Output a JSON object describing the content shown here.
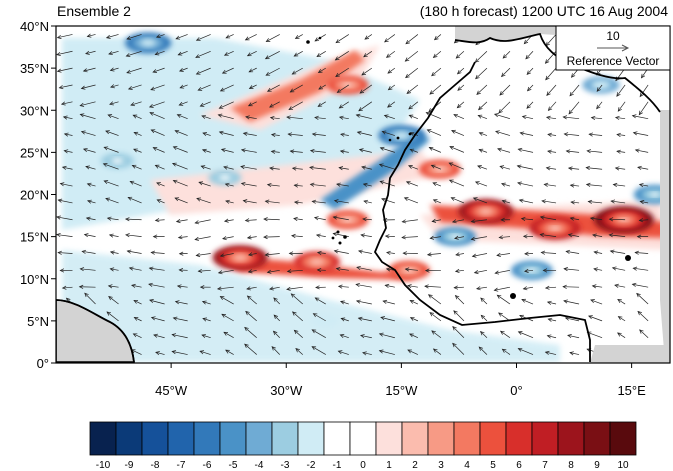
{
  "panel": {
    "left_title": "Ensemble 2",
    "right_title": "(180 h forecast) 1200 UTC 16 Aug 2004"
  },
  "reference_vector": {
    "magnitude_label": "10",
    "label": "Reference Vector"
  },
  "map": {
    "lon_range": [
      -60,
      20
    ],
    "lat_range": [
      0,
      40
    ],
    "lat_ticks": [
      "40°N",
      "35°N",
      "30°N",
      "25°N",
      "20°N",
      "15°N",
      "10°N",
      "5°N",
      "0°"
    ],
    "lon_ticks": [
      "45°W",
      "30°W",
      "15°W",
      "0°",
      "15°E"
    ],
    "land_mask_color": "#d3d3d3",
    "coastline_color": "#000000",
    "vector_color": "#222222"
  },
  "anomaly_features": [
    {
      "lon": -36,
      "lat": 12.5,
      "value": 8,
      "sign": "positive"
    },
    {
      "lon": -26,
      "lat": 12,
      "value": 6,
      "sign": "positive"
    },
    {
      "lon": -14,
      "lat": 11,
      "value": 5,
      "sign": "positive"
    },
    {
      "lon": -4,
      "lat": 18,
      "value": 8,
      "sign": "positive"
    },
    {
      "lon": 5,
      "lat": 16,
      "value": 7,
      "sign": "positive"
    },
    {
      "lon": 14,
      "lat": 17,
      "value": 9,
      "sign": "positive"
    },
    {
      "lon": -10,
      "lat": 23,
      "value": 5,
      "sign": "positive"
    },
    {
      "lon": -22,
      "lat": 33,
      "value": 5,
      "sign": "positive"
    },
    {
      "lon": -22,
      "lat": 17,
      "value": 5,
      "sign": "positive"
    },
    {
      "lon": -15,
      "lat": 27,
      "value": -6,
      "sign": "negative"
    },
    {
      "lon": -48,
      "lat": 38,
      "value": -6,
      "sign": "negative"
    },
    {
      "lon": -8,
      "lat": 15,
      "value": -5,
      "sign": "negative"
    },
    {
      "lon": 2,
      "lat": 11,
      "value": -5,
      "sign": "negative"
    },
    {
      "lon": -52,
      "lat": 24,
      "value": -3,
      "sign": "negative"
    },
    {
      "lon": -38,
      "lat": 22,
      "value": -3,
      "sign": "negative"
    },
    {
      "lon": -25,
      "lat": 5,
      "value": -2,
      "sign": "negative"
    },
    {
      "lon": 18,
      "lat": 20,
      "value": -5,
      "sign": "negative"
    },
    {
      "lon": 11,
      "lat": 33,
      "value": -4,
      "sign": "negative"
    }
  ],
  "colorbar": {
    "labels": [
      "-10",
      "-9",
      "-8",
      "-7",
      "-6",
      "-5",
      "-4",
      "-3",
      "-2",
      "-1",
      "0",
      "1",
      "2",
      "3",
      "4",
      "5",
      "6",
      "7",
      "8",
      "9",
      "10"
    ],
    "colors": [
      "#08224f",
      "#0b3a78",
      "#15519a",
      "#2164ac",
      "#3279ba",
      "#4a92c7",
      "#6fabd4",
      "#9ccde1",
      "#d0ecf5",
      "#ffffff",
      "#ffffff",
      "#fde0dc",
      "#fbbcae",
      "#f79a85",
      "#f37961",
      "#ec513d",
      "#d82f2b",
      "#c01e24",
      "#9c141c",
      "#7a0f14",
      "#590a0d"
    ]
  }
}
